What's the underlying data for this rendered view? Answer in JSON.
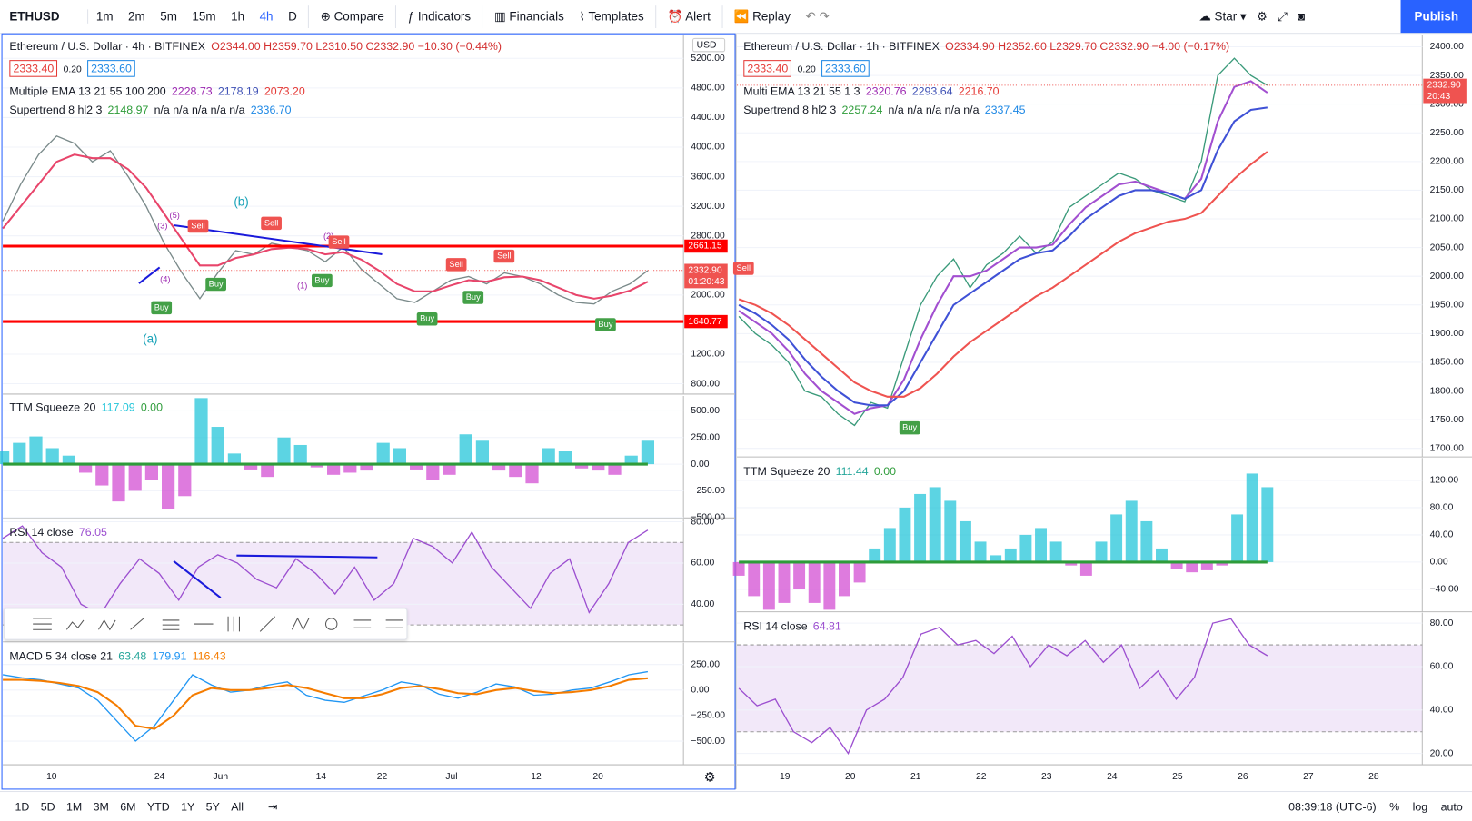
{
  "toolbar": {
    "symbol": "ETHUSD",
    "intervals": [
      "1m",
      "2m",
      "5m",
      "15m",
      "1h",
      "4h",
      "D"
    ],
    "compare": "Compare",
    "indicators": "Indicators",
    "financials": "Financials",
    "templates": "Templates",
    "alert": "Alert",
    "replay": "Replay",
    "star": "Star",
    "publish": "Publish"
  },
  "left": {
    "title": "Ethereum / U.S. Dollar · 4h · BITFINEX",
    "ohlc": "O2344.00 H2359.70 L2310.50 C2332.90 −10.30 (−0.44%)",
    "bid": "2333.40",
    "spread": "0.20",
    "ask": "2333.60",
    "currency": "USD",
    "ema_label": "Multiple EMA 13 21 55 100 200",
    "ema_values": [
      "2228.73",
      "2178.19",
      "2073.20"
    ],
    "st_label": "Supertrend 8 hl2 3",
    "st_values": [
      "2148.97",
      "n/a n/a n/a n/a n/a",
      "2336.70"
    ],
    "waves": [
      "(b)",
      "(a)",
      "(1)",
      "(3)",
      "(5)",
      "(2)",
      "(4)"
    ],
    "signals": [
      "Sell",
      "Sell",
      "Sell",
      "Sell",
      "Sell",
      "Buy",
      "Buy",
      "Buy",
      "Buy",
      "Buy",
      "Buy"
    ],
    "main": {
      "ylim": [
        660,
        5520
      ],
      "yticks": [
        {
          "value": 5200,
          "label": "5200.00"
        },
        {
          "value": 4800,
          "label": "4800.00"
        },
        {
          "value": 4400,
          "label": "4400.00"
        },
        {
          "value": 4000,
          "label": "4000.00"
        },
        {
          "value": 3600,
          "label": "3600.00"
        },
        {
          "value": 3200,
          "label": "3200.00"
        },
        {
          "value": 2800,
          "label": "2800.00"
        },
        {
          "value": 2000,
          "label": "2000.00"
        },
        {
          "value": 1200,
          "label": "1200.00"
        },
        {
          "value": 800,
          "label": "800.00"
        }
      ],
      "series": [
        {
          "style": "line",
          "color": "#7a8a8a",
          "values": [
            3000,
            3500,
            3900,
            4150,
            4050,
            3800,
            3950,
            3600,
            3200,
            2700,
            2300,
            1950,
            2300,
            2600,
            2550,
            2700,
            2650,
            2600,
            2450,
            2650,
            2350,
            2150,
            1950,
            1900,
            2050,
            2200,
            2250,
            2150,
            2300,
            2250,
            2150,
            2000,
            1900,
            1880,
            2050,
            2150,
            2330
          ]
        },
        {
          "style": "line",
          "color": "#e8456b",
          "values": [
            2900,
            3200,
            3500,
            3800,
            3900,
            3850,
            3850,
            3700,
            3450,
            3100,
            2750,
            2400,
            2400,
            2500,
            2550,
            2620,
            2640,
            2620,
            2550,
            2580,
            2480,
            2330,
            2150,
            2050,
            2050,
            2130,
            2200,
            2180,
            2240,
            2250,
            2200,
            2100,
            2000,
            1950,
            1990,
            2060,
            2180
          ]
        }
      ],
      "levels": [
        {
          "value": 2661.15,
          "label": "2661.15"
        },
        {
          "value": 1640.77,
          "label": "1640.77"
        }
      ],
      "last": {
        "value": 2332.9,
        "label": "2332.90"
      },
      "countdown": "01:20:43"
    },
    "ttm": {
      "label": "TTM Squeeze 20",
      "values": [
        "117.09",
        "0.00"
      ],
      "ylim": [
        -505,
        640
      ],
      "yticks": [
        {
          "value": 500,
          "label": "500.00"
        },
        {
          "value": 250,
          "label": "250.00"
        },
        {
          "value": 0,
          "label": "0.00"
        },
        {
          "value": -250,
          "label": "−250.00"
        },
        {
          "value": -500,
          "label": "−500.00"
        }
      ],
      "series": [
        {
          "style": "hist",
          "color": "#26c6da",
          "neg_color": "#d34fd3",
          "values": [
            120,
            200,
            260,
            150,
            80,
            -80,
            -200,
            -350,
            -250,
            -150,
            -420,
            -300,
            620,
            350,
            100,
            -50,
            -120,
            250,
            180,
            -30,
            -100,
            -80,
            -60,
            200,
            150,
            -50,
            -150,
            -100,
            280,
            220,
            -60,
            -120,
            -180,
            150,
            120,
            -40,
            -60,
            -100,
            80,
            220
          ]
        }
      ]
    },
    "rsi": {
      "label": "RSI 14 close",
      "values": [
        "76.05"
      ],
      "ylim": [
        21.8,
        81.4
      ],
      "bands": [
        30,
        70
      ],
      "yticks": [
        {
          "value": 80,
          "label": "80.00"
        },
        {
          "value": 60,
          "label": "60.00"
        },
        {
          "value": 40,
          "label": "40.00"
        }
      ],
      "series": [
        {
          "style": "line",
          "color": "#9c4fd0",
          "values": [
            72,
            78,
            65,
            58,
            40,
            35,
            50,
            62,
            55,
            42,
            58,
            64,
            60,
            52,
            48,
            62,
            55,
            45,
            58,
            42,
            50,
            72,
            68,
            60,
            75,
            58,
            48,
            38,
            55,
            62,
            36,
            50,
            70,
            76
          ]
        }
      ]
    },
    "macd": {
      "label": "MACD 5 34 close 21",
      "values": [
        "63.48",
        "179.91",
        "116.43"
      ],
      "ylim": [
        -731,
        463
      ],
      "yticks": [
        {
          "value": 250,
          "label": "250.00"
        },
        {
          "value": 0,
          "label": "0.00"
        },
        {
          "value": -250,
          "label": "−250.00"
        },
        {
          "value": -500,
          "label": "−500.00"
        }
      ],
      "series": [
        {
          "style": "line",
          "color": "#2196f3",
          "values": [
            150,
            120,
            100,
            60,
            20,
            -100,
            -300,
            -500,
            -350,
            -100,
            150,
            50,
            -20,
            0,
            50,
            80,
            -50,
            -100,
            -120,
            -60,
            0,
            80,
            50,
            -40,
            -80,
            -20,
            60,
            30,
            -50,
            -40,
            0,
            20,
            80,
            150,
            180
          ]
        },
        {
          "style": "line",
          "color": "#f57c00",
          "values": [
            100,
            100,
            90,
            70,
            40,
            -20,
            -150,
            -350,
            -380,
            -250,
            -50,
            20,
            0,
            0,
            20,
            50,
            20,
            -30,
            -80,
            -80,
            -40,
            20,
            40,
            10,
            -30,
            -40,
            0,
            20,
            -10,
            -30,
            -20,
            0,
            40,
            100,
            116
          ]
        }
      ]
    },
    "xticks": [
      "10",
      "24",
      "Jun",
      "14",
      "22",
      "Jul",
      "12",
      "20"
    ]
  },
  "right": {
    "title": "Ethereum / U.S. Dollar · 1h · BITFINEX",
    "ohlc": "O2334.90 H2352.60 L2329.70 C2332.90 −4.00 (−0.17%)",
    "bid": "2333.40",
    "spread": "0.20",
    "ask": "2333.60",
    "ema_label": "Multi EMA 13 21 55 1 3",
    "ema_values": [
      "2320.76",
      "2293.64",
      "2216.70"
    ],
    "st_label": "Supertrend 8 hl2 3",
    "st_values": [
      "2257.24",
      "n/a n/a n/a n/a n/a",
      "2337.45"
    ],
    "signals": [
      "Sell",
      "Buy"
    ],
    "main": {
      "ylim": [
        1685,
        2421
      ],
      "yticks": [
        {
          "value": 2400,
          "label": "2400.00"
        },
        {
          "value": 2350,
          "label": "2350.00"
        },
        {
          "value": 2300,
          "label": "2300.00"
        },
        {
          "value": 2250,
          "label": "2250.00"
        },
        {
          "value": 2200,
          "label": "2200.00"
        },
        {
          "value": 2150,
          "label": "2150.00"
        },
        {
          "value": 2100,
          "label": "2100.00"
        },
        {
          "value": 2050,
          "label": "2050.00"
        },
        {
          "value": 2000,
          "label": "2000.00"
        },
        {
          "value": 1950,
          "label": "1950.00"
        },
        {
          "value": 1900,
          "label": "1900.00"
        },
        {
          "value": 1850,
          "label": "1850.00"
        },
        {
          "value": 1800,
          "label": "1800.00"
        },
        {
          "value": 1750,
          "label": "1750.00"
        },
        {
          "value": 1700,
          "label": "1700.00"
        }
      ],
      "series": [
        {
          "style": "line",
          "color": "#3a9a7a",
          "values": [
            1930,
            1900,
            1880,
            1850,
            1800,
            1790,
            1760,
            1740,
            1780,
            1770,
            1860,
            1950,
            2000,
            2030,
            1980,
            2020,
            2040,
            2070,
            2040,
            2060,
            2120,
            2140,
            2160,
            2180,
            2170,
            2150,
            2140,
            2130,
            2200,
            2350,
            2380,
            2350,
            2332.9
          ]
        },
        {
          "style": "line",
          "color": "#a24fd0",
          "values": [
            1940,
            1920,
            1900,
            1870,
            1830,
            1800,
            1780,
            1760,
            1770,
            1775,
            1820,
            1890,
            1950,
            2000,
            2000,
            2010,
            2030,
            2050,
            2050,
            2055,
            2090,
            2120,
            2140,
            2160,
            2165,
            2155,
            2145,
            2135,
            2170,
            2270,
            2330,
            2340,
            2320
          ]
        },
        {
          "style": "line",
          "color": "#3f51d6",
          "values": [
            1950,
            1935,
            1915,
            1890,
            1855,
            1825,
            1800,
            1780,
            1775,
            1775,
            1800,
            1850,
            1900,
            1950,
            1970,
            1990,
            2010,
            2030,
            2040,
            2045,
            2070,
            2100,
            2120,
            2140,
            2150,
            2150,
            2145,
            2135,
            2150,
            2220,
            2270,
            2290,
            2294
          ]
        },
        {
          "style": "line",
          "color": "#ef5350",
          "values": [
            1960,
            1950,
            1935,
            1915,
            1890,
            1865,
            1840,
            1815,
            1800,
            1790,
            1790,
            1805,
            1830,
            1860,
            1885,
            1905,
            1925,
            1945,
            1965,
            1980,
            2000,
            2020,
            2040,
            2060,
            2075,
            2085,
            2095,
            2100,
            2110,
            2140,
            2170,
            2195,
            2217
          ]
        }
      ],
      "last": {
        "value": 2332.9,
        "label": "2332.90"
      },
      "countdown": "20:43"
    },
    "ttm": {
      "label": "TTM Squeeze 20",
      "values": [
        "111.44",
        "0.00"
      ],
      "ylim": [
        -73,
        153
      ],
      "yticks": [
        {
          "value": 120,
          "label": "120.00"
        },
        {
          "value": 80,
          "label": "80.00"
        },
        {
          "value": 40,
          "label": "40.00"
        },
        {
          "value": 0,
          "label": "0.00"
        },
        {
          "value": -40,
          "label": "−40.00"
        }
      ],
      "series": [
        {
          "style": "hist",
          "color": "#26c6da",
          "neg_color": "#d34fd3",
          "values": [
            -20,
            -50,
            -70,
            -60,
            -40,
            -60,
            -70,
            -50,
            -30,
            20,
            50,
            80,
            100,
            110,
            90,
            60,
            30,
            10,
            20,
            40,
            50,
            30,
            -5,
            -20,
            30,
            70,
            90,
            60,
            20,
            -10,
            -15,
            -12,
            -5,
            70,
            130,
            110
          ]
        }
      ]
    },
    "rsi": {
      "label": "RSI 14 close",
      "values": [
        "64.81"
      ],
      "ylim": [
        14.8,
        84.8
      ],
      "bands": [
        30,
        70
      ],
      "yticks": [
        {
          "value": 80,
          "label": "80.00"
        },
        {
          "value": 60,
          "label": "60.00"
        },
        {
          "value": 40,
          "label": "40.00"
        },
        {
          "value": 20,
          "label": "20.00"
        }
      ],
      "series": [
        {
          "style": "line",
          "color": "#9c4fd0",
          "values": [
            50,
            42,
            45,
            30,
            25,
            32,
            20,
            40,
            45,
            55,
            75,
            78,
            70,
            72,
            66,
            74,
            60,
            70,
            65,
            72,
            62,
            70,
            50,
            58,
            45,
            55,
            80,
            82,
            70,
            65
          ]
        }
      ]
    },
    "xticks": [
      "19",
      "20",
      "21",
      "22",
      "23",
      "24",
      "25",
      "26",
      "27",
      "28"
    ]
  },
  "bottom": {
    "ranges": [
      "1D",
      "5D",
      "1M",
      "3M",
      "6M",
      "YTD",
      "1Y",
      "5Y",
      "All"
    ],
    "clock": "08:39:18 (UTC-6)",
    "percent": "%",
    "log": "log",
    "auto": "auto"
  }
}
